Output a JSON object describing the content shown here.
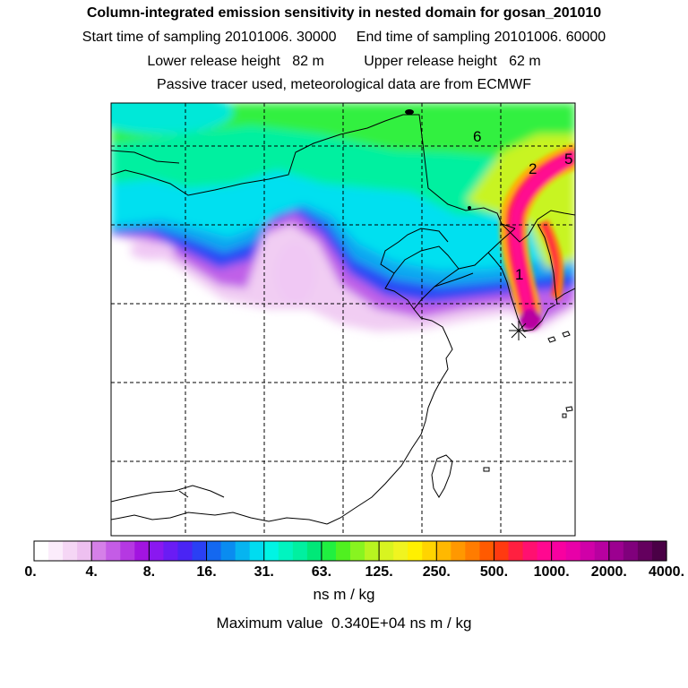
{
  "header": {
    "title": "Column-integrated emission sensitivity in nested domain for gosan_201010",
    "sampling_line": "Start time of sampling 20101006. 30000     End time of sampling 20101006. 60000",
    "release_line": "Lower release height   82 m          Upper release height   62 m",
    "info_line": "Passive tracer used, meteorological data are from ECMWF"
  },
  "map": {
    "release_marker": "release-point-star",
    "contour_labels": [
      {
        "text": "6"
      },
      {
        "text": "2"
      },
      {
        "text": "5"
      },
      {
        "text": "1"
      }
    ]
  },
  "colorbar": {
    "ticks": [
      "0.",
      "4.",
      "8.",
      "16.",
      "31.",
      "63.",
      "125.",
      "250.",
      "500.",
      "1000.",
      "2000.",
      "4000."
    ],
    "colors": [
      "#ffffff",
      "#fbecfb",
      "#f5d6f5",
      "#eec0f0",
      "#d580e8",
      "#c45ce6",
      "#b538e2",
      "#a214e0",
      "#8a18f0",
      "#6a1cf4",
      "#4a24f4",
      "#2a40f4",
      "#1468f0",
      "#0a8cf0",
      "#06b4f0",
      "#00dcf0",
      "#00f4e4",
      "#00f4c0",
      "#00f0a0",
      "#00e878",
      "#20f040",
      "#50f020",
      "#88f420",
      "#b8f420",
      "#d8f420",
      "#f0f420",
      "#fff000",
      "#ffd400",
      "#ffb800",
      "#ff9800",
      "#ff7c00",
      "#ff5a00",
      "#ff3a10",
      "#ff2040",
      "#ff1070",
      "#ff0890",
      "#f800a0",
      "#e800a8",
      "#d000a8",
      "#b800a0",
      "#9c0090",
      "#80007c",
      "#64005e",
      "#4a0046"
    ],
    "units": "ns m / kg",
    "max_value_text": "Maximum value  0.340E+04 ns m / kg"
  }
}
